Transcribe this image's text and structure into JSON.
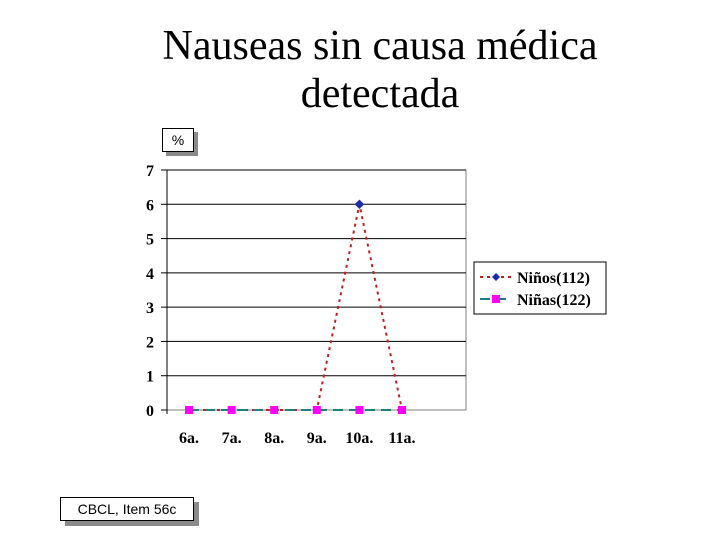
{
  "chart_data": {
    "type": "line",
    "title": "Nauseas sin causa médica detectada",
    "title_lines": [
      "Nauseas sin causa médica",
      "detectada"
    ],
    "ylabel": "%",
    "xlabel": "",
    "categories": [
      "6a.",
      "7a.",
      "8a.",
      "9a.",
      "10a.",
      "11a."
    ],
    "ylim": [
      0,
      7
    ],
    "yticks": [
      0,
      1,
      2,
      3,
      4,
      5,
      6,
      7
    ],
    "grid": "horizontal",
    "legend_position": "right",
    "series": [
      {
        "name": "Niños(112)",
        "values": [
          0,
          0,
          0,
          0,
          6,
          0
        ],
        "color": "#c0201f",
        "marker_color": "#1f2aa8",
        "marker": "diamond",
        "line_style": "dotted",
        "marker_points": [
          4
        ]
      },
      {
        "name": "Niñas(122)",
        "values": [
          0,
          0,
          0,
          0,
          0,
          0
        ],
        "color": "#1e7f7f",
        "marker_color": "#ff00ff",
        "marker": "square",
        "line_style": "dashed",
        "marker_points": [
          0,
          1,
          2,
          3,
          4,
          5
        ]
      }
    ]
  },
  "source": "CBCL, Item 56c"
}
